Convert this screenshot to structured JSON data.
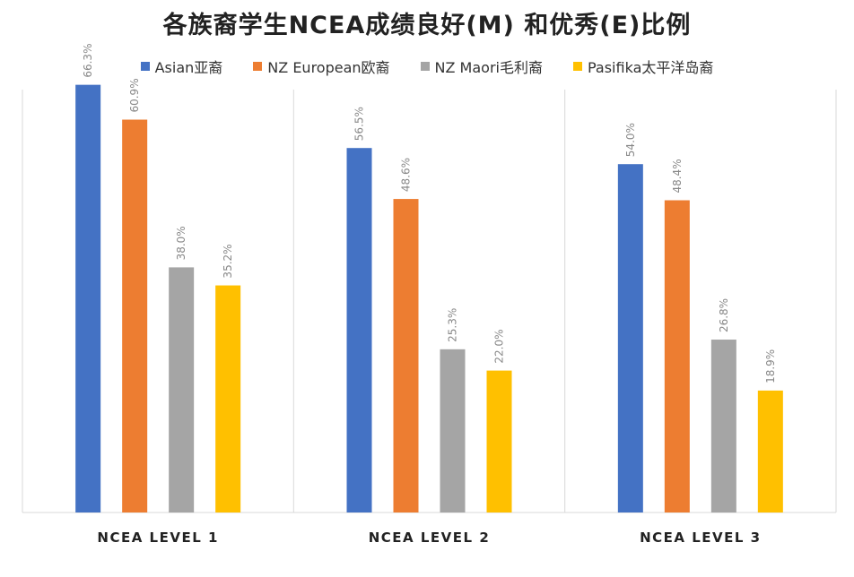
{
  "chart_data": {
    "type": "bar",
    "title": "各族裔学生NCEA成绩良好(M) 和优秀(E)比例",
    "categories": [
      "NCEA LEVEL 1",
      "NCEA LEVEL 2",
      "NCEA LEVEL 3"
    ],
    "series": [
      {
        "name": "Asian亚裔",
        "color": "#4472C4",
        "values": [
          66.3,
          56.5,
          54.0
        ],
        "labels": [
          "66.3%",
          "56.5%",
          "54.0%"
        ]
      },
      {
        "name": "NZ European欧裔",
        "color": "#ED7D31",
        "values": [
          60.9,
          48.6,
          48.4
        ],
        "labels": [
          "60.9%",
          "48.6%",
          "48.4%"
        ]
      },
      {
        "name": "NZ Maori毛利裔",
        "color": "#A5A5A5",
        "values": [
          38.0,
          25.3,
          26.8
        ],
        "labels": [
          "38.0%",
          "25.3%",
          "26.8%"
        ]
      },
      {
        "name": "Pasifika太平洋岛裔",
        "color": "#FFC000",
        "values": [
          35.2,
          22.0,
          18.9
        ],
        "labels": [
          "35.2%",
          "22.0%",
          "18.9%"
        ]
      }
    ],
    "ylim": [
      0,
      70
    ],
    "legend_position": "top",
    "grid": false
  }
}
